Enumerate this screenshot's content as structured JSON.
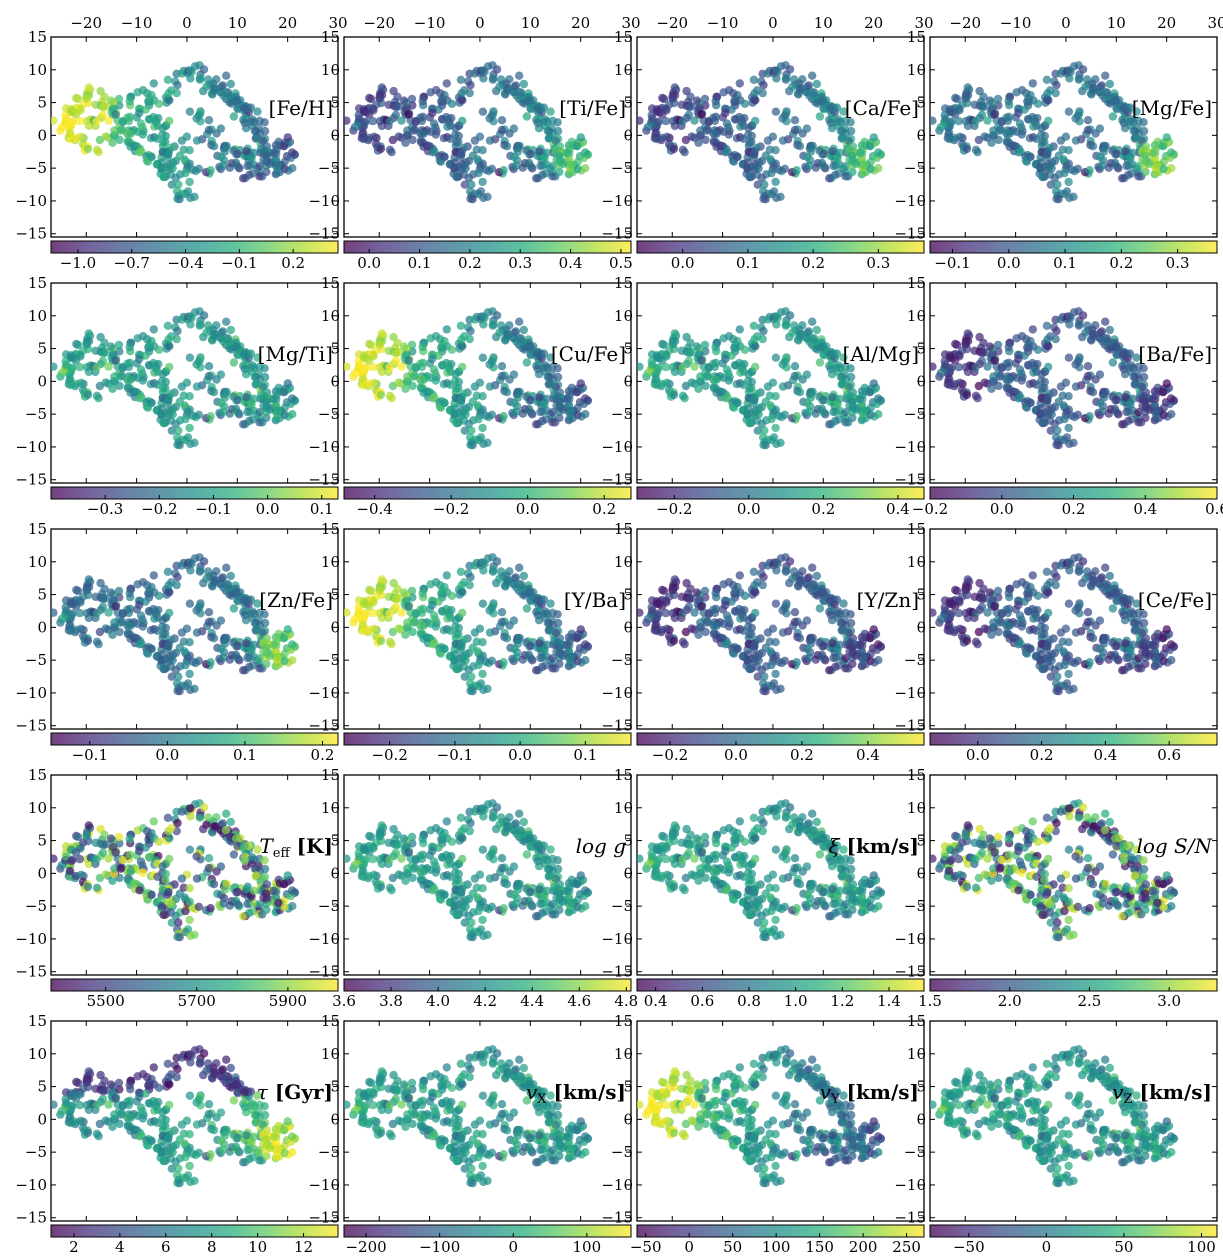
{
  "colors": {
    "colormap": [
      "#440154",
      "#472d7b",
      "#3b528b",
      "#2c728e",
      "#21918c",
      "#28ae80",
      "#5ec962",
      "#addc30",
      "#fde725"
    ],
    "frame": "#000000",
    "background": "#ffffff"
  },
  "chart_data": {
    "type": "scatter",
    "layout": {
      "rows": 5,
      "cols": 4
    },
    "xlim": [
      -27,
      30
    ],
    "ylim": [
      -15.5,
      15
    ],
    "x_ticks": [
      -20,
      -10,
      0,
      10,
      20,
      30
    ],
    "y_ticks": [
      15,
      10,
      5,
      0,
      -5,
      -10,
      -15
    ],
    "x_tick_labels": [
      "−20",
      "−10",
      "0",
      "10",
      "20",
      "30"
    ],
    "y_tick_labels": [
      "15",
      "10",
      "5",
      "0",
      "−5",
      "−10",
      "−15"
    ],
    "panels": [
      {
        "label": "[Fe/H]",
        "cmin": -1.15,
        "cmax": 0.45,
        "ticks": [
          -1.0,
          -0.7,
          -0.4,
          -0.1,
          0.2
        ],
        "tick_labels": [
          "−1.0",
          "−0.7",
          "−0.4",
          "−0.1",
          "0.2"
        ],
        "trend": "x"
      },
      {
        "label": "[Ti/Fe]",
        "cmin": -0.05,
        "cmax": 0.52,
        "ticks": [
          0.0,
          0.1,
          0.2,
          0.3,
          0.4,
          0.5
        ],
        "tick_labels": [
          "0.0",
          "0.1",
          "0.2",
          "0.3",
          "0.4",
          "0.5"
        ],
        "trend": "xr"
      },
      {
        "label": "[Ca/Fe]",
        "cmin": -0.07,
        "cmax": 0.37,
        "ticks": [
          0.0,
          0.1,
          0.2,
          0.3
        ],
        "tick_labels": [
          "0.0",
          "0.1",
          "0.2",
          "0.3"
        ],
        "trend": "xr"
      },
      {
        "label": "[Mg/Fe]",
        "cmin": -0.14,
        "cmax": 0.37,
        "ticks": [
          -0.1,
          0.0,
          0.1,
          0.2,
          0.3
        ],
        "tick_labels": [
          "−0.1",
          "0.0",
          "0.1",
          "0.2",
          "0.3"
        ],
        "trend": "cluster"
      },
      {
        "label": "[Mg/Ti]",
        "cmin": -0.4,
        "cmax": 0.13,
        "ticks": [
          -0.3,
          -0.2,
          -0.1,
          0.0,
          0.1
        ],
        "tick_labels": [
          "−0.3",
          "−0.2",
          "−0.1",
          "0.0",
          "0.1"
        ],
        "trend": "mid"
      },
      {
        "label": "[Cu/Fe]",
        "cmin": -0.48,
        "cmax": 0.27,
        "ticks": [
          -0.4,
          -0.2,
          0.0,
          0.2
        ],
        "tick_labels": [
          "−0.4",
          "−0.2",
          "0.0",
          "0.2"
        ],
        "trend": "x"
      },
      {
        "label": "[Al/Mg]",
        "cmin": -0.3,
        "cmax": 0.47,
        "ticks": [
          -0.2,
          0.0,
          0.2,
          0.4
        ],
        "tick_labels": [
          "−0.2",
          "0.0",
          "0.2",
          "0.4"
        ],
        "trend": "mid"
      },
      {
        "label": "[Ba/Fe]",
        "cmin": -0.2,
        "cmax": 0.6,
        "ticks": [
          -0.2,
          0.0,
          0.2,
          0.4,
          0.6
        ],
        "tick_labels": [
          "−0.2",
          "0.0",
          "0.2",
          "0.4",
          "0.6"
        ],
        "trend": "lowmid"
      },
      {
        "label": "[Zn/Fe]",
        "cmin": -0.15,
        "cmax": 0.22,
        "ticks": [
          -0.1,
          0.0,
          0.1,
          0.2
        ],
        "tick_labels": [
          "−0.1",
          "0.0",
          "0.1",
          "0.2"
        ],
        "trend": "cluster"
      },
      {
        "label": "[Y/Ba]",
        "cmin": -0.27,
        "cmax": 0.17,
        "ticks": [
          -0.2,
          -0.1,
          0.0,
          0.1
        ],
        "tick_labels": [
          "−0.2",
          "−0.1",
          "0.0",
          "0.1"
        ],
        "trend": "x"
      },
      {
        "label": "[Y/Zn]",
        "cmin": -0.3,
        "cmax": 0.57,
        "ticks": [
          -0.2,
          0.0,
          0.2,
          0.4
        ],
        "tick_labels": [
          "−0.2",
          "0.0",
          "0.2",
          "0.4"
        ],
        "trend": "lowmid"
      },
      {
        "label": "[Ce/Fe]",
        "cmin": -0.15,
        "cmax": 0.75,
        "ticks": [
          0.0,
          0.2,
          0.4,
          0.6
        ],
        "tick_labels": [
          "0.0",
          "0.2",
          "0.4",
          "0.6"
        ],
        "trend": "lowmid"
      },
      {
        "label": "T",
        "label_sub": "eff",
        "label_unit": "[K]",
        "cmin": 5380,
        "cmax": 6010,
        "ticks": [
          5500,
          5700,
          5900
        ],
        "tick_labels": [
          "5500",
          "5700",
          "5900"
        ],
        "trend": "random"
      },
      {
        "label": "log g",
        "cmin": 3.6,
        "cmax": 4.82,
        "ticks": [
          3.6,
          3.8,
          4.0,
          4.2,
          4.4,
          4.6,
          4.8
        ],
        "tick_labels": [
          "3.6",
          "3.8",
          "4.0",
          "4.2",
          "4.4",
          "4.6",
          "4.8"
        ],
        "trend": "mid"
      },
      {
        "label": "ξ",
        "label_unit": "[km/s]",
        "cmin": 0.32,
        "cmax": 1.55,
        "ticks": [
          0.4,
          0.6,
          0.8,
          1.0,
          1.2,
          1.4
        ],
        "tick_labels": [
          "0.4",
          "0.6",
          "0.8",
          "1.0",
          "1.2",
          "1.4"
        ],
        "trend": "mid"
      },
      {
        "label": "log S/N",
        "cmin": 1.5,
        "cmax": 3.3,
        "ticks": [
          1.5,
          2.0,
          2.5,
          3.0
        ],
        "tick_labels": [
          "1.5",
          "2.0",
          "2.5",
          "3.0"
        ],
        "trend": "random"
      },
      {
        "label": "τ",
        "label_unit": "[Gyr]",
        "cmin": 1.0,
        "cmax": 13.5,
        "ticks": [
          2,
          4,
          6,
          8,
          10,
          12
        ],
        "tick_labels": [
          "2",
          "4",
          "6",
          "8",
          "10",
          "12"
        ],
        "trend": "age"
      },
      {
        "label": "v",
        "label_sub": "X",
        "label_unit": "[km/s]",
        "cmin": -230,
        "cmax": 160,
        "ticks": [
          -200,
          -100,
          0,
          100
        ],
        "tick_labels": [
          "−200",
          "−100",
          "0",
          "100"
        ],
        "trend": "mid"
      },
      {
        "label": "v",
        "label_sub": "Y",
        "label_unit": "[km/s]",
        "cmin": -60,
        "cmax": 270,
        "ticks": [
          -50,
          0,
          50,
          100,
          150,
          200,
          250
        ],
        "tick_labels": [
          "−50",
          "0",
          "50",
          "100",
          "150",
          "200",
          "250"
        ],
        "trend": "x"
      },
      {
        "label": "v",
        "label_sub": "Z",
        "label_unit": "[km/s]",
        "cmin": -75,
        "cmax": 110,
        "ticks": [
          -50,
          0,
          50,
          100
        ],
        "tick_labels": [
          "−50",
          "0",
          "50",
          "100"
        ],
        "trend": "mid"
      }
    ]
  }
}
